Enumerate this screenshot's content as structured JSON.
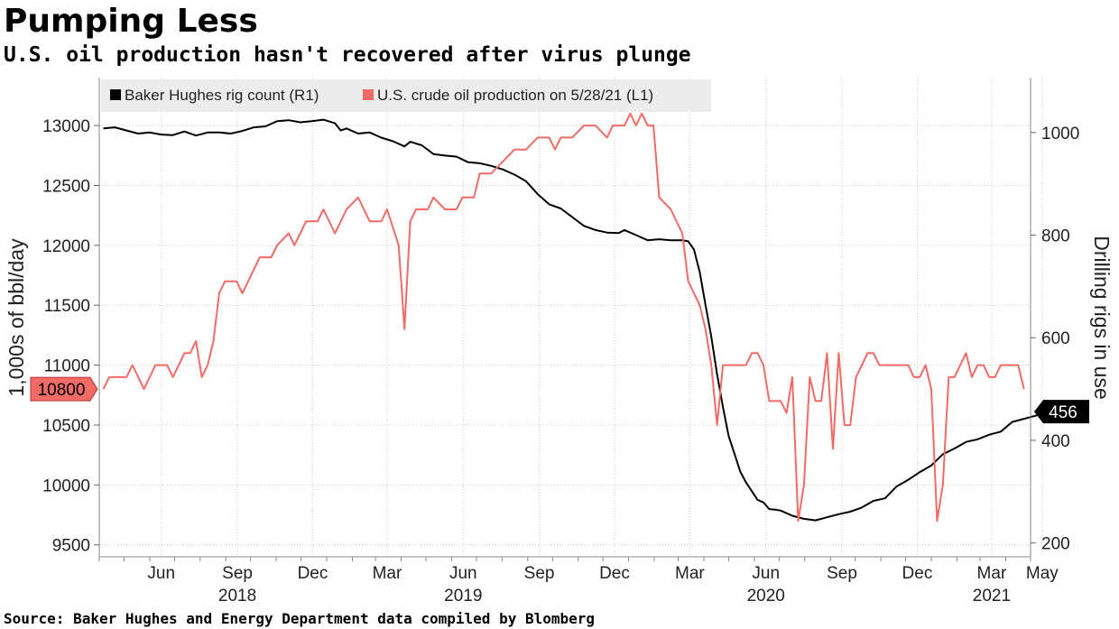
{
  "title": "Pumping Less",
  "subtitle": "U.S. oil production hasn't recovered after virus plunge",
  "source": "Source: Baker Hughes and Energy Department data compiled by Blomberg",
  "colors": {
    "rig": "#000000",
    "oil": "#f06b66",
    "grid": "#c8c8c8",
    "legend_bg": "#ececec"
  },
  "chart_data": {
    "type": "line",
    "x_start": "2018-04",
    "x_end": "2021-05",
    "month_labels": [
      {
        "date": "2018-06",
        "label": "Jun"
      },
      {
        "date": "2018-09",
        "label": "Sep"
      },
      {
        "date": "2018-12",
        "label": "Dec"
      },
      {
        "date": "2019-03",
        "label": "Mar"
      },
      {
        "date": "2019-06",
        "label": "Jun"
      },
      {
        "date": "2019-09",
        "label": "Sep"
      },
      {
        "date": "2019-12",
        "label": "Dec"
      },
      {
        "date": "2020-03",
        "label": "Mar"
      },
      {
        "date": "2020-06",
        "label": "Jun"
      },
      {
        "date": "2020-09",
        "label": "Sep"
      },
      {
        "date": "2020-12",
        "label": "Dec"
      },
      {
        "date": "2021-03",
        "label": "Mar"
      },
      {
        "date": "2021-05",
        "label": "May"
      }
    ],
    "year_labels": [
      {
        "date": "2018-09",
        "label": "2018"
      },
      {
        "date": "2019-06",
        "label": "2019"
      },
      {
        "date": "2020-06",
        "label": "2020"
      },
      {
        "date": "2021-03",
        "label": "2021"
      }
    ],
    "left_axis": {
      "label": "1,000s of bbl/day",
      "ticks": [
        9500,
        10000,
        10500,
        11000,
        11500,
        12000,
        12500,
        13000
      ],
      "range": [
        9400,
        13400
      ]
    },
    "right_axis": {
      "label": "Drilling rigs in use",
      "ticks": [
        200,
        400,
        600,
        800,
        1000
      ],
      "range": [
        173,
        1107
      ]
    },
    "grid": true,
    "legend": {
      "position": "top-left",
      "items": [
        "Baker Hughes rig count (R1)",
        "U.S. crude oil production on 5/28/21 (L1)"
      ]
    },
    "last_value_labels": {
      "oil": "10800",
      "rig": "456"
    },
    "series": [
      {
        "name": "Baker Hughes rig count (R1)",
        "axis": "right",
        "points": [
          [
            "2018-04-06",
            1008
          ],
          [
            "2018-04-20",
            1010
          ],
          [
            "2018-05-04",
            1004
          ],
          [
            "2018-05-18",
            998
          ],
          [
            "2018-06-01",
            1000
          ],
          [
            "2018-06-15",
            996
          ],
          [
            "2018-06-29",
            995
          ],
          [
            "2018-07-13",
            1002
          ],
          [
            "2018-07-27",
            994
          ],
          [
            "2018-08-10",
            1000
          ],
          [
            "2018-08-24",
            1000
          ],
          [
            "2018-09-07",
            998
          ],
          [
            "2018-09-21",
            1003
          ],
          [
            "2018-10-05",
            1010
          ],
          [
            "2018-10-19",
            1012
          ],
          [
            "2018-11-02",
            1022
          ],
          [
            "2018-11-16",
            1024
          ],
          [
            "2018-11-30",
            1020
          ],
          [
            "2018-12-14",
            1022
          ],
          [
            "2018-12-28",
            1025
          ],
          [
            "2019-01-11",
            1018
          ],
          [
            "2019-01-18",
            1004
          ],
          [
            "2019-01-25",
            1008
          ],
          [
            "2019-02-08",
            998
          ],
          [
            "2019-02-22",
            1000
          ],
          [
            "2019-03-08",
            990
          ],
          [
            "2019-03-22",
            983
          ],
          [
            "2019-04-05",
            973
          ],
          [
            "2019-04-12",
            982
          ],
          [
            "2019-04-26",
            975
          ],
          [
            "2019-05-10",
            958
          ],
          [
            "2019-05-24",
            955
          ],
          [
            "2019-06-07",
            953
          ],
          [
            "2019-06-21",
            942
          ],
          [
            "2019-07-05",
            940
          ],
          [
            "2019-07-19",
            935
          ],
          [
            "2019-08-02",
            928
          ],
          [
            "2019-08-16",
            918
          ],
          [
            "2019-08-30",
            905
          ],
          [
            "2019-09-13",
            880
          ],
          [
            "2019-09-27",
            860
          ],
          [
            "2019-10-11",
            852
          ],
          [
            "2019-10-25",
            835
          ],
          [
            "2019-11-08",
            818
          ],
          [
            "2019-11-22",
            810
          ],
          [
            "2019-12-06",
            805
          ],
          [
            "2019-12-20",
            804
          ],
          [
            "2019-12-27",
            810
          ],
          [
            "2020-01-10",
            800
          ],
          [
            "2020-01-24",
            790
          ],
          [
            "2020-02-07",
            792
          ],
          [
            "2020-02-21",
            790
          ],
          [
            "2020-03-06",
            790
          ],
          [
            "2020-03-13",
            788
          ],
          [
            "2020-03-20",
            772
          ],
          [
            "2020-03-27",
            728
          ],
          [
            "2020-04-03",
            664
          ],
          [
            "2020-04-10",
            602
          ],
          [
            "2020-04-17",
            529
          ],
          [
            "2020-04-24",
            465
          ],
          [
            "2020-05-01",
            408
          ],
          [
            "2020-05-08",
            374
          ],
          [
            "2020-05-15",
            339
          ],
          [
            "2020-05-22",
            318
          ],
          [
            "2020-05-29",
            301
          ],
          [
            "2020-06-05",
            284
          ],
          [
            "2020-06-12",
            279
          ],
          [
            "2020-06-19",
            266
          ],
          [
            "2020-06-26",
            265
          ],
          [
            "2020-07-03",
            263
          ],
          [
            "2020-07-17",
            253
          ],
          [
            "2020-07-31",
            247
          ],
          [
            "2020-08-14",
            244
          ],
          [
            "2020-08-28",
            250
          ],
          [
            "2020-09-11",
            256
          ],
          [
            "2020-09-25",
            261
          ],
          [
            "2020-10-09",
            269
          ],
          [
            "2020-10-23",
            282
          ],
          [
            "2020-11-06",
            287
          ],
          [
            "2020-11-20",
            310
          ],
          [
            "2020-12-04",
            323
          ],
          [
            "2020-12-18",
            338
          ],
          [
            "2021-01-01",
            351
          ],
          [
            "2021-01-15",
            373
          ],
          [
            "2021-01-29",
            384
          ],
          [
            "2021-02-12",
            397
          ],
          [
            "2021-02-26",
            402
          ],
          [
            "2021-03-12",
            411
          ],
          [
            "2021-03-26",
            417
          ],
          [
            "2021-04-09",
            436
          ],
          [
            "2021-04-23",
            442
          ],
          [
            "2021-05-07",
            448
          ],
          [
            "2021-05-21",
            457
          ],
          [
            "2021-05-28",
            456
          ]
        ]
      },
      {
        "name": "U.S. crude oil production on 5/28/21 (L1)",
        "axis": "left",
        "points": [
          [
            "2018-04-06",
            10800
          ],
          [
            "2018-04-13",
            10900
          ],
          [
            "2018-05-04",
            10900
          ],
          [
            "2018-05-11",
            11000
          ],
          [
            "2018-05-25",
            10800
          ],
          [
            "2018-06-08",
            11000
          ],
          [
            "2018-06-22",
            11000
          ],
          [
            "2018-06-29",
            10900
          ],
          [
            "2018-07-13",
            11100
          ],
          [
            "2018-07-20",
            11100
          ],
          [
            "2018-07-27",
            11200
          ],
          [
            "2018-08-03",
            10900
          ],
          [
            "2018-08-10",
            11000
          ],
          [
            "2018-08-17",
            11200
          ],
          [
            "2018-08-24",
            11600
          ],
          [
            "2018-08-31",
            11700
          ],
          [
            "2018-09-14",
            11700
          ],
          [
            "2018-09-21",
            11600
          ],
          [
            "2018-09-28",
            11700
          ],
          [
            "2018-10-12",
            11900
          ],
          [
            "2018-10-26",
            11900
          ],
          [
            "2018-11-02",
            12000
          ],
          [
            "2018-11-16",
            12100
          ],
          [
            "2018-11-23",
            12000
          ],
          [
            "2018-11-30",
            12100
          ],
          [
            "2018-12-07",
            12200
          ],
          [
            "2018-12-21",
            12200
          ],
          [
            "2018-12-28",
            12300
          ],
          [
            "2019-01-11",
            12100
          ],
          [
            "2019-01-25",
            12300
          ],
          [
            "2019-02-08",
            12400
          ],
          [
            "2019-02-22",
            12200
          ],
          [
            "2019-03-08",
            12200
          ],
          [
            "2019-03-15",
            12300
          ],
          [
            "2019-03-29",
            12000
          ],
          [
            "2019-04-05",
            11300
          ],
          [
            "2019-04-12",
            12200
          ],
          [
            "2019-04-19",
            12300
          ],
          [
            "2019-05-03",
            12300
          ],
          [
            "2019-05-10",
            12400
          ],
          [
            "2019-05-24",
            12300
          ],
          [
            "2019-06-07",
            12300
          ],
          [
            "2019-06-14",
            12400
          ],
          [
            "2019-06-28",
            12400
          ],
          [
            "2019-07-05",
            12600
          ],
          [
            "2019-07-19",
            12600
          ],
          [
            "2019-08-02",
            12700
          ],
          [
            "2019-08-16",
            12800
          ],
          [
            "2019-08-30",
            12800
          ],
          [
            "2019-09-13",
            12900
          ],
          [
            "2019-09-27",
            12900
          ],
          [
            "2019-10-04",
            12800
          ],
          [
            "2019-10-11",
            12900
          ],
          [
            "2019-10-25",
            12900
          ],
          [
            "2019-11-08",
            13000
          ],
          [
            "2019-11-22",
            13000
          ],
          [
            "2019-12-06",
            12900
          ],
          [
            "2019-12-13",
            13000
          ],
          [
            "2019-12-27",
            13000
          ],
          [
            "2020-01-03",
            13100
          ],
          [
            "2020-01-10",
            13000
          ],
          [
            "2020-01-17",
            13100
          ],
          [
            "2020-01-24",
            13000
          ],
          [
            "2020-01-31",
            13000
          ],
          [
            "2020-02-07",
            12400
          ],
          [
            "2020-02-21",
            12300
          ],
          [
            "2020-03-06",
            12100
          ],
          [
            "2020-03-13",
            11700
          ],
          [
            "2020-03-20",
            11600
          ],
          [
            "2020-03-27",
            11500
          ],
          [
            "2020-04-03",
            11300
          ],
          [
            "2020-04-10",
            11000
          ],
          [
            "2020-04-17",
            10500
          ],
          [
            "2020-04-24",
            11000
          ],
          [
            "2020-05-01",
            11000
          ],
          [
            "2020-05-08",
            11000
          ],
          [
            "2020-05-22",
            11000
          ],
          [
            "2020-05-29",
            11100
          ],
          [
            "2020-06-05",
            11100
          ],
          [
            "2020-06-12",
            11000
          ],
          [
            "2020-06-19",
            10700
          ],
          [
            "2020-06-26",
            10700
          ],
          [
            "2020-07-03",
            10700
          ],
          [
            "2020-07-10",
            10600
          ],
          [
            "2020-07-17",
            10900
          ],
          [
            "2020-07-24",
            9700
          ],
          [
            "2020-07-31",
            10000
          ],
          [
            "2020-08-07",
            10900
          ],
          [
            "2020-08-14",
            10700
          ],
          [
            "2020-08-21",
            10700
          ],
          [
            "2020-08-28",
            11100
          ],
          [
            "2020-09-04",
            10300
          ],
          [
            "2020-09-11",
            11100
          ],
          [
            "2020-09-18",
            10500
          ],
          [
            "2020-09-25",
            10500
          ],
          [
            "2020-10-02",
            10900
          ],
          [
            "2020-10-16",
            11100
          ],
          [
            "2020-10-23",
            11100
          ],
          [
            "2020-10-30",
            11000
          ],
          [
            "2020-11-13",
            11000
          ],
          [
            "2020-11-27",
            11000
          ],
          [
            "2020-12-04",
            11000
          ],
          [
            "2020-12-11",
            10900
          ],
          [
            "2020-12-18",
            10900
          ],
          [
            "2020-12-25",
            11000
          ],
          [
            "2021-01-01",
            10800
          ],
          [
            "2021-01-08",
            9700
          ],
          [
            "2021-01-15",
            10000
          ],
          [
            "2021-01-22",
            10900
          ],
          [
            "2021-01-29",
            10900
          ],
          [
            "2021-02-05",
            11000
          ],
          [
            "2021-02-12",
            11100
          ],
          [
            "2021-02-19",
            10900
          ],
          [
            "2021-02-26",
            11000
          ],
          [
            "2021-03-05",
            11000
          ],
          [
            "2021-03-12",
            10900
          ],
          [
            "2021-03-19",
            10900
          ],
          [
            "2021-03-26",
            11000
          ],
          [
            "2021-04-02",
            11000
          ],
          [
            "2021-04-16",
            11000
          ],
          [
            "2021-04-23",
            10800
          ]
        ]
      }
    ]
  }
}
